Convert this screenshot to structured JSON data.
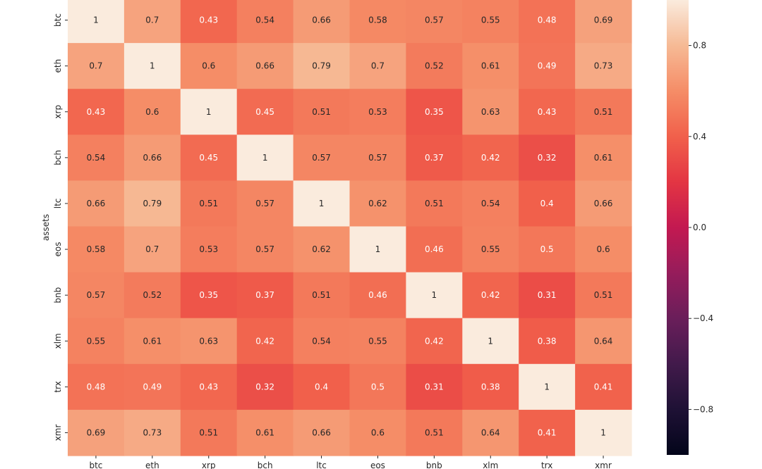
{
  "chart_data": {
    "type": "heatmap",
    "title": "",
    "xlabel": "",
    "ylabel": "assets",
    "x_categories": [
      "btc",
      "eth",
      "xrp",
      "bch",
      "ltc",
      "eos",
      "bnb",
      "xlm",
      "trx",
      "xmr"
    ],
    "y_categories": [
      "btc",
      "eth",
      "xrp",
      "bch",
      "ltc",
      "eos",
      "bnb",
      "xlm",
      "trx",
      "xmr"
    ],
    "values": [
      [
        1,
        0.7,
        0.43,
        0.54,
        0.66,
        0.58,
        0.57,
        0.55,
        0.48,
        0.69
      ],
      [
        0.7,
        1,
        0.6,
        0.66,
        0.79,
        0.7,
        0.52,
        0.61,
        0.49,
        0.73
      ],
      [
        0.43,
        0.6,
        1,
        0.45,
        0.51,
        0.53,
        0.35,
        0.63,
        0.43,
        0.51
      ],
      [
        0.54,
        0.66,
        0.45,
        1,
        0.57,
        0.57,
        0.37,
        0.42,
        0.32,
        0.61
      ],
      [
        0.66,
        0.79,
        0.51,
        0.57,
        1,
        0.62,
        0.51,
        0.54,
        0.4,
        0.66
      ],
      [
        0.58,
        0.7,
        0.53,
        0.57,
        0.62,
        1,
        0.46,
        0.55,
        0.5,
        0.6
      ],
      [
        0.57,
        0.52,
        0.35,
        0.37,
        0.51,
        0.46,
        1,
        0.42,
        0.31,
        0.51
      ],
      [
        0.55,
        0.61,
        0.63,
        0.42,
        0.54,
        0.55,
        0.42,
        1,
        0.38,
        0.64
      ],
      [
        0.48,
        0.49,
        0.43,
        0.32,
        0.4,
        0.5,
        0.31,
        0.38,
        1,
        0.41
      ],
      [
        0.69,
        0.73,
        0.51,
        0.61,
        0.66,
        0.6,
        0.51,
        0.64,
        0.41,
        1
      ]
    ],
    "colorbar": {
      "colormap": "rocket",
      "vmin": -1,
      "vmax": 1,
      "ticks": [
        -0.8,
        -0.4,
        0.0,
        0.4,
        0.8
      ],
      "tick_labels": [
        "−0.8",
        "−0.4",
        "0.0",
        "0.4",
        "0.8"
      ]
    },
    "annotations": true,
    "grid": false,
    "legend": "colorbar-right"
  }
}
